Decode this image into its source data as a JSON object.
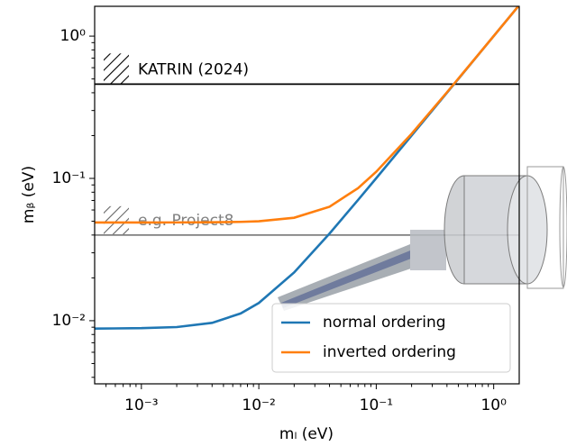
{
  "chart_data": {
    "type": "line",
    "xlabel": "mₗ (eV)",
    "ylabel": "mᵦ (eV)",
    "xscale": "log",
    "yscale": "log",
    "xlim": [
      0.0004,
      1.65
    ],
    "ylim": [
      0.0036,
      1.62
    ],
    "xticks": [
      {
        "value": 0.001,
        "label": "10⁻³"
      },
      {
        "value": 0.01,
        "label": "10⁻²"
      },
      {
        "value": 0.1,
        "label": "10⁻¹"
      },
      {
        "value": 1,
        "label": "10⁰"
      }
    ],
    "yticks": [
      {
        "value": 0.01,
        "label": "10⁻²"
      },
      {
        "value": 0.1,
        "label": "10⁻¹"
      },
      {
        "value": 1,
        "label": "10⁰"
      }
    ],
    "x": [
      0.0004,
      0.001,
      0.002,
      0.004,
      0.007,
      0.01,
      0.02,
      0.04,
      0.07,
      0.1,
      0.2,
      0.4,
      0.7,
      1,
      1.65
    ],
    "series": [
      {
        "name": "normal ordering",
        "color": "#1f77b4",
        "values": [
          0.0088,
          0.00886,
          0.00902,
          0.00966,
          0.01124,
          0.01332,
          0.02185,
          0.04096,
          0.07055,
          0.1004,
          0.2002,
          0.4001,
          0.7,
          1,
          1.65
        ]
      },
      {
        "name": "inverted ordering",
        "color": "#ff7f0e",
        "values": [
          0.049,
          0.04901,
          0.04904,
          0.04916,
          0.0495,
          0.05001,
          0.05292,
          0.06324,
          0.08546,
          0.1114,
          0.2059,
          0.403,
          0.7017,
          1.0012,
          1.6507
        ]
      }
    ],
    "hlines": [
      {
        "label": "KATRIN (2024)",
        "value": 0.46,
        "color": "#000000"
      },
      {
        "label": "e.g. Project8",
        "value": 0.04,
        "color": "#808080"
      }
    ],
    "legend": "lower right"
  }
}
